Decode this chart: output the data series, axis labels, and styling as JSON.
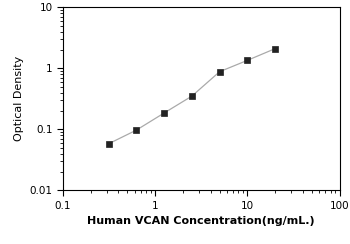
{
  "x_data": [
    0.313,
    0.625,
    1.25,
    2.5,
    5.0,
    10.0,
    20.0
  ],
  "y_data": [
    0.058,
    0.097,
    0.185,
    0.35,
    0.88,
    1.35,
    2.1
  ],
  "xlabel": "Human VCAN Concentration(ng/mL.)",
  "ylabel": "Optical Density",
  "xlim": [
    0.1,
    100
  ],
  "ylim": [
    0.01,
    10
  ],
  "line_color": "#aaaaaa",
  "marker_color": "#222222",
  "marker_size": 4.5,
  "line_width": 0.9,
  "background_color": "#ffffff",
  "xticks": [
    0.1,
    1,
    10,
    100
  ],
  "yticks": [
    0.01,
    0.1,
    1,
    10
  ],
  "xlabel_fontsize": 8,
  "ylabel_fontsize": 8,
  "tick_labelsize": 7.5
}
